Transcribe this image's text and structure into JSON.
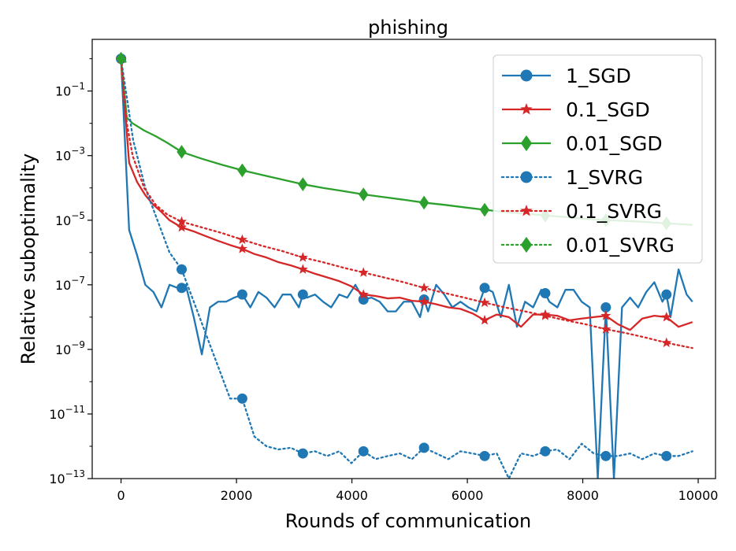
{
  "chart_data": {
    "type": "line",
    "title": "phishing",
    "xlabel": "Rounds of communication",
    "ylabel": "Relative suboptimality",
    "xlim": [
      -500,
      10300
    ],
    "ylim_log10": [
      -13,
      0.6
    ],
    "yscale": "log",
    "grid": false,
    "legend_position": "top-right",
    "x_ticks": [
      0,
      2000,
      4000,
      6000,
      8000,
      10000
    ],
    "x_tick_labels": [
      "0",
      "2000",
      "4000",
      "6000",
      "8000",
      "10000"
    ],
    "y_ticks_log10": [
      -1,
      -3,
      -5,
      -7,
      -9,
      -11,
      -13
    ],
    "y_tick_labels": [
      "10",
      "10",
      "10",
      "10",
      "10",
      "10",
      "10"
    ],
    "y_tick_exponents": [
      "−1",
      "−3",
      "−5",
      "−7",
      "−9",
      "−11",
      "−13"
    ],
    "series": [
      {
        "name": "1_SGD",
        "color": "#1f77b4",
        "linestyle": "solid",
        "marker": "circle",
        "x": [
          0,
          140,
          280,
          420,
          560,
          700,
          840,
          980,
          1050,
          1120,
          1260,
          1400,
          1540,
          1680,
          1820,
          1960,
          2100,
          2240,
          2380,
          2520,
          2660,
          2800,
          2940,
          3080,
          3150,
          3220,
          3360,
          3500,
          3640,
          3780,
          3920,
          4060,
          4200,
          4340,
          4480,
          4620,
          4760,
          4900,
          5040,
          5180,
          5250,
          5320,
          5460,
          5600,
          5740,
          5880,
          6020,
          6160,
          6300,
          6440,
          6580,
          6720,
          6860,
          7000,
          7140,
          7280,
          7350,
          7420,
          7560,
          7700,
          7840,
          7980,
          8120,
          8260,
          8400,
          8540,
          8680,
          8820,
          8960,
          9100,
          9240,
          9380,
          9450,
          9520,
          9660,
          9800,
          9900
        ],
        "y": [
          1.0,
          5e-06,
          8e-07,
          1e-07,
          6e-08,
          2e-08,
          1e-07,
          8e-08,
          8e-08,
          1e-07,
          1e-08,
          7e-10,
          2e-08,
          3e-08,
          3e-08,
          4e-08,
          5e-08,
          2e-08,
          6e-08,
          4e-08,
          2e-08,
          5e-08,
          5e-08,
          2e-08,
          5e-08,
          4e-08,
          5e-08,
          3e-08,
          2e-08,
          5e-08,
          4e-08,
          1e-07,
          3.5e-08,
          4e-08,
          3e-08,
          1.5e-08,
          1.5e-08,
          3e-08,
          3e-08,
          1e-08,
          3.5e-08,
          1.5e-08,
          1e-07,
          5e-08,
          2e-08,
          3e-08,
          2e-08,
          1.5e-08,
          8e-08,
          6e-08,
          1e-08,
          1e-07,
          5e-09,
          3e-08,
          2e-08,
          7e-08,
          5.5e-08,
          3e-08,
          2e-08,
          7e-08,
          7e-08,
          3e-08,
          2e-08,
          1e-13,
          2e-08,
          1e-13,
          2e-08,
          4e-08,
          2e-08,
          6e-08,
          1.2e-07,
          3e-08,
          5e-08,
          1e-08,
          3e-07,
          5e-08,
          3e-08
        ],
        "markers_x": [
          0,
          1050,
          2100,
          3150,
          4200,
          5250,
          6300,
          7350,
          8400,
          9450
        ],
        "markers_y": [
          1.0,
          8e-08,
          5e-08,
          5e-08,
          3.5e-08,
          3.5e-08,
          8e-08,
          5.5e-08,
          2e-08,
          5e-08
        ]
      },
      {
        "name": "0.1_SGD",
        "color": "#d62728",
        "linestyle": "solid",
        "marker": "star",
        "x": [
          0,
          140,
          280,
          420,
          560,
          700,
          840,
          1050,
          1260,
          1470,
          1680,
          1890,
          2100,
          2310,
          2520,
          2730,
          2940,
          3150,
          3360,
          3570,
          3780,
          3990,
          4200,
          4410,
          4620,
          4830,
          5040,
          5250,
          5460,
          5670,
          5880,
          6090,
          6300,
          6510,
          6720,
          6930,
          7140,
          7350,
          7560,
          7770,
          7980,
          8190,
          8400,
          8610,
          8820,
          9030,
          9240,
          9450,
          9660,
          9900
        ],
        "y": [
          1.0,
          0.0006,
          0.00015,
          6e-05,
          3e-05,
          1.8e-05,
          1e-05,
          6e-06,
          4.5e-06,
          3.2e-06,
          2.3e-06,
          1.7e-06,
          1.3e-06,
          9e-07,
          7e-07,
          5e-07,
          4e-07,
          3e-07,
          2.2e-07,
          1.7e-07,
          1.3e-07,
          9e-08,
          5e-08,
          4.5e-08,
          3.8e-08,
          4e-08,
          3.2e-08,
          3e-08,
          2.5e-08,
          2e-08,
          1.8e-08,
          1.3e-08,
          8e-09,
          1.2e-08,
          1e-08,
          5e-09,
          1.2e-08,
          1.2e-08,
          1.1e-08,
          8e-09,
          9e-09,
          1e-08,
          1.1e-08,
          6e-09,
          4e-09,
          9e-09,
          1.1e-08,
          1e-08,
          5e-09,
          7e-09
        ],
        "markers_x": [
          0,
          1050,
          2100,
          3150,
          4200,
          5250,
          6300,
          7350,
          8400,
          9450
        ],
        "markers_y": [
          1.0,
          6e-06,
          1.3e-06,
          3e-07,
          5e-08,
          3e-08,
          8e-09,
          1.2e-08,
          1.1e-08,
          1e-08
        ]
      },
      {
        "name": "0.01_SGD",
        "color": "#2ca02c",
        "linestyle": "solid",
        "marker": "diamond",
        "x": [
          0,
          100,
          200,
          400,
          600,
          800,
          1050,
          1400,
          1750,
          2100,
          2450,
          2800,
          3150,
          3500,
          3850,
          4200,
          4550,
          4900,
          5250,
          5600,
          5950,
          6300,
          6650,
          7000,
          7350,
          7700,
          8050,
          8400,
          8750,
          9100,
          9450,
          9900
        ],
        "y": [
          1.0,
          0.015,
          0.01,
          0.006,
          0.004,
          0.0025,
          0.0013,
          0.0008,
          0.00052,
          0.00035,
          0.00025,
          0.00018,
          0.00013,
          0.0001,
          8e-05,
          6.3e-05,
          5.2e-05,
          4.3e-05,
          3.5e-05,
          3e-05,
          2.5e-05,
          2.1e-05,
          1.8e-05,
          1.6e-05,
          1.4e-05,
          1.25e-05,
          1.1e-05,
          1e-05,
          9.5e-06,
          8.8e-06,
          8e-06,
          7.2e-06
        ],
        "markers_x": [
          0,
          1050,
          2100,
          3150,
          4200,
          5250,
          6300,
          7350,
          8400,
          9450
        ],
        "markers_y": [
          1.0,
          0.0013,
          0.00035,
          0.00013,
          6.3e-05,
          3.5e-05,
          2.1e-05,
          1.4e-05,
          1e-05,
          8e-06
        ]
      },
      {
        "name": "1_SVRG",
        "color": "#1f77b4",
        "linestyle": "dotted",
        "marker": "circle",
        "x": [
          0,
          210,
          420,
          630,
          840,
          1050,
          1260,
          1470,
          1680,
          1890,
          2100,
          2310,
          2520,
          2730,
          2940,
          3150,
          3360,
          3570,
          3780,
          3990,
          4200,
          4410,
          4620,
          4830,
          5040,
          5250,
          5460,
          5670,
          5880,
          6090,
          6300,
          6510,
          6720,
          6930,
          7140,
          7350,
          7560,
          7770,
          7980,
          8190,
          8400,
          8610,
          8820,
          9030,
          9240,
          9450,
          9660,
          9900
        ],
        "y": [
          1.0,
          0.003,
          0.0001,
          1e-05,
          1e-06,
          3e-07,
          3e-08,
          3e-09,
          3e-10,
          3e-11,
          3e-11,
          2e-12,
          1e-12,
          8e-13,
          9e-13,
          6e-13,
          7e-13,
          5e-13,
          7e-13,
          3e-13,
          7e-13,
          4e-13,
          5e-13,
          6e-13,
          4e-13,
          9e-13,
          6e-13,
          4e-13,
          7e-13,
          6e-13,
          5e-13,
          6e-13,
          1e-13,
          6e-13,
          5e-13,
          7e-13,
          8e-13,
          4e-13,
          1.2e-12,
          6e-13,
          5e-13,
          5e-13,
          6e-13,
          4e-13,
          6e-13,
          5e-13,
          5e-13,
          7e-13
        ],
        "markers_x": [
          0,
          1050,
          2100,
          3150,
          4200,
          5250,
          6300,
          7350,
          8400,
          9450
        ],
        "markers_y": [
          1.0,
          3e-07,
          3e-11,
          6e-13,
          7e-13,
          9e-13,
          5e-13,
          7e-13,
          5e-13,
          5e-13
        ]
      },
      {
        "name": "0.1_SVRG",
        "color": "#d62728",
        "linestyle": "dotted",
        "marker": "star",
        "x": [
          0,
          100,
          200,
          400,
          600,
          800,
          1050,
          1400,
          1750,
          2100,
          2450,
          2800,
          3150,
          3500,
          3850,
          4200,
          4550,
          4900,
          5250,
          5600,
          5950,
          6300,
          6650,
          7000,
          7350,
          7700,
          8050,
          8400,
          8750,
          9100,
          9450,
          9900
        ],
        "y": [
          1.0,
          0.01,
          0.001,
          0.0001,
          3e-05,
          1.5e-05,
          9e-06,
          6e-06,
          4e-06,
          2.5e-06,
          1.6e-06,
          1.1e-06,
          7e-07,
          5e-07,
          3.4e-07,
          2.4e-07,
          1.7e-07,
          1.2e-07,
          8e-08,
          5.6e-08,
          4e-08,
          2.8e-08,
          2e-08,
          1.5e-08,
          1.1e-08,
          8e-09,
          6e-09,
          4.2e-09,
          3.2e-09,
          2.3e-09,
          1.6e-09,
          1.1e-09
        ],
        "markers_x": [
          0,
          1050,
          2100,
          3150,
          4200,
          5250,
          6300,
          7350,
          8400,
          9450
        ],
        "markers_y": [
          1.0,
          9e-06,
          2.5e-06,
          7e-07,
          2.4e-07,
          8e-08,
          2.8e-08,
          1.1e-08,
          4.2e-09,
          1.6e-09
        ]
      },
      {
        "name": "0.01_SVRG",
        "color": "#2ca02c",
        "linestyle": "dotted",
        "marker": "diamond",
        "x": [
          0,
          40,
          80
        ],
        "y": [
          1.0,
          0.9,
          0.8
        ],
        "markers_x": [
          0
        ],
        "markers_y": [
          1.0
        ]
      }
    ]
  }
}
